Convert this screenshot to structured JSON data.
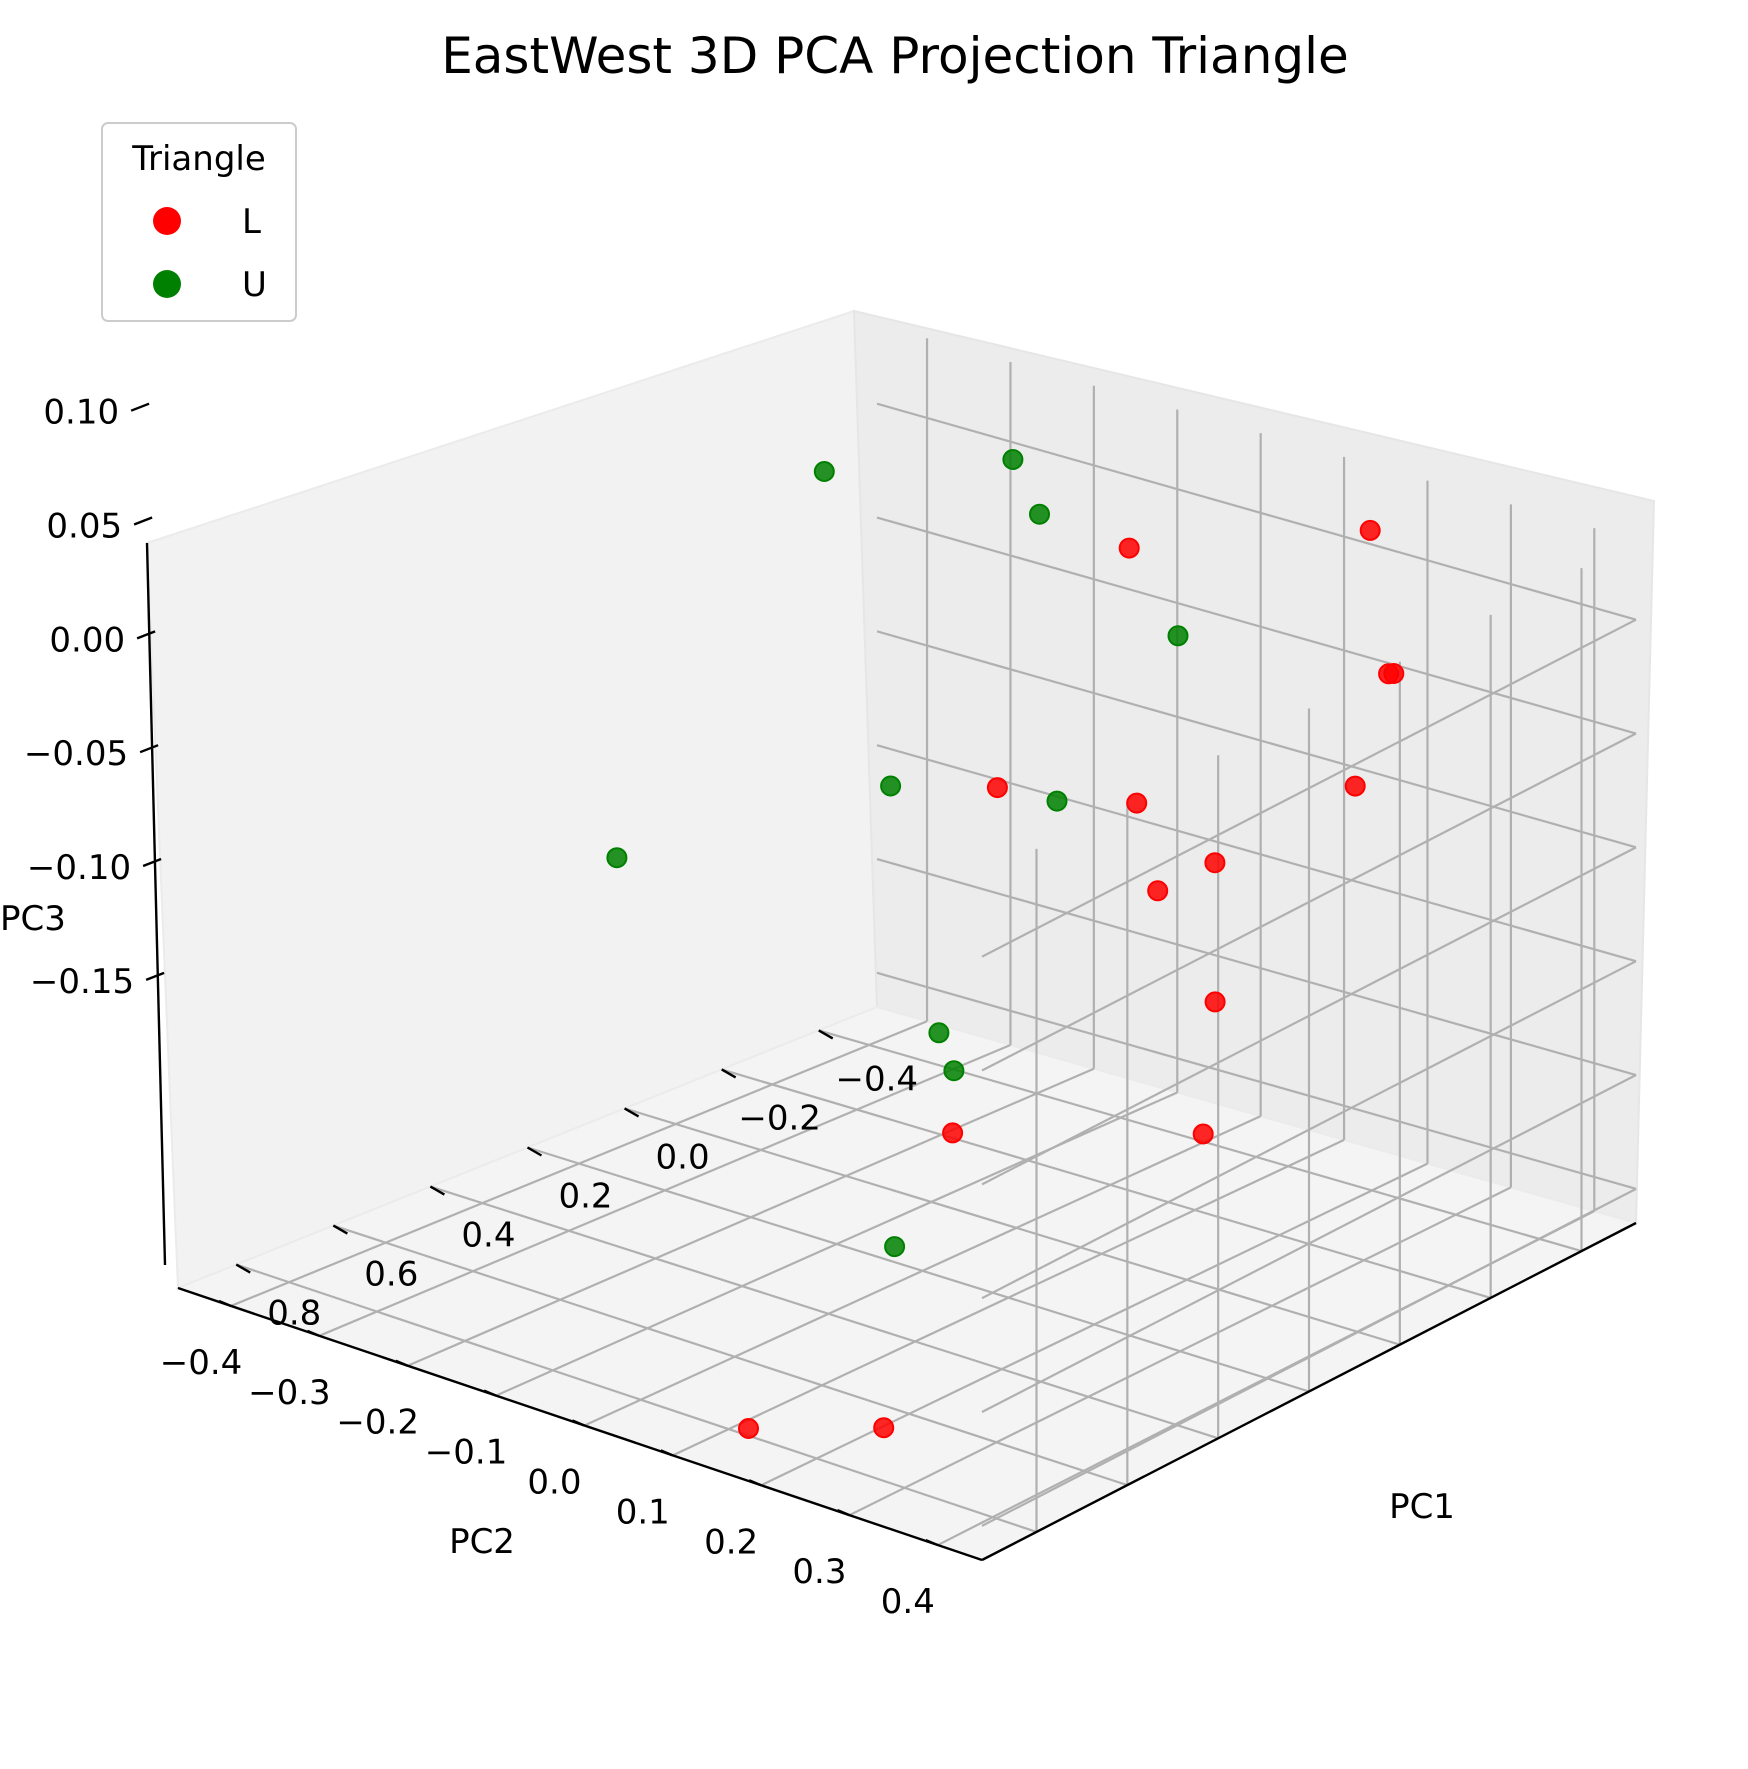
{
  "chart_data": {
    "type": "scatter",
    "projection": "3d",
    "title": "EastWest 3D PCA Projection Triangle",
    "xlabel": "PC1",
    "ylabel": "PC2",
    "zlabel": "PC3",
    "xticks": [
      "−0.4",
      "−0.2",
      "0.0",
      "0.2",
      "0.4",
      "0.6",
      "0.8"
    ],
    "yticks": [
      "−0.4",
      "−0.3",
      "−0.2",
      "−0.1",
      "0.0",
      "0.1",
      "0.2",
      "0.3",
      "0.4"
    ],
    "zticks": [
      "−0.15",
      "−0.10",
      "−0.05",
      "0.00",
      "0.05",
      "0.10"
    ],
    "grid": true,
    "legend": {
      "title": "Triangle",
      "position": "upper-left"
    },
    "series": [
      {
        "name": "L",
        "color": "#ff0000",
        "points": [
          {
            "pc1": -0.36,
            "pc2": 0.22,
            "pc3": 0.131
          },
          {
            "pc1": -0.15,
            "pc2": 0.05,
            "pc3": 0.125
          },
          {
            "pc1": -0.21,
            "pc2": 0.33,
            "pc3": 0.095
          },
          {
            "pc1": -0.18,
            "pc2": 0.34,
            "pc3": 0.099
          },
          {
            "pc1": -0.07,
            "pc2": 0.36,
            "pc3": 0.063
          },
          {
            "pc1": 0.05,
            "pc2": 0.26,
            "pc3": 0.03
          },
          {
            "pc1": 0.1,
            "pc2": 0.22,
            "pc3": 0.018
          },
          {
            "pc1": -0.22,
            "pc2": 0.02,
            "pc3": 0.003
          },
          {
            "pc1": -0.05,
            "pc2": -0.05,
            "pc3": 0.018
          },
          {
            "pc1": 0.18,
            "pc2": 0.33,
            "pc3": -0.01
          },
          {
            "pc1": 0.3,
            "pc2": 0.38,
            "pc3": -0.05
          },
          {
            "pc1": 0.45,
            "pc2": 0.17,
            "pc3": -0.06
          },
          {
            "pc1": 0.75,
            "pc2": 0.25,
            "pc3": -0.15
          },
          {
            "pc1": 0.72,
            "pc2": 0.08,
            "pc3": -0.175
          }
        ]
      },
      {
        "name": "U",
        "color": "#008000",
        "points": [
          {
            "pc1": -0.35,
            "pc2": -0.2,
            "pc3": 0.118
          },
          {
            "pc1": -0.22,
            "pc2": -0.35,
            "pc3": 0.108
          },
          {
            "pc1": -0.3,
            "pc2": -0.14,
            "pc3": 0.105
          },
          {
            "pc1": -0.2,
            "pc2": 0.08,
            "pc3": 0.085
          },
          {
            "pc1": 0.05,
            "pc2": -0.12,
            "pc3": 0.02
          },
          {
            "pc1": -0.05,
            "pc2": 0.02,
            "pc3": 0.02
          },
          {
            "pc1": 0.3,
            "pc2": -0.3,
            "pc3": -0.01
          },
          {
            "pc1": 0.22,
            "pc2": 0.03,
            "pc3": -0.055
          },
          {
            "pc1": 0.28,
            "pc2": 0.08,
            "pc3": -0.06
          },
          {
            "pc1": 0.5,
            "pc2": 0.13,
            "pc3": -0.11
          }
        ]
      }
    ]
  }
}
